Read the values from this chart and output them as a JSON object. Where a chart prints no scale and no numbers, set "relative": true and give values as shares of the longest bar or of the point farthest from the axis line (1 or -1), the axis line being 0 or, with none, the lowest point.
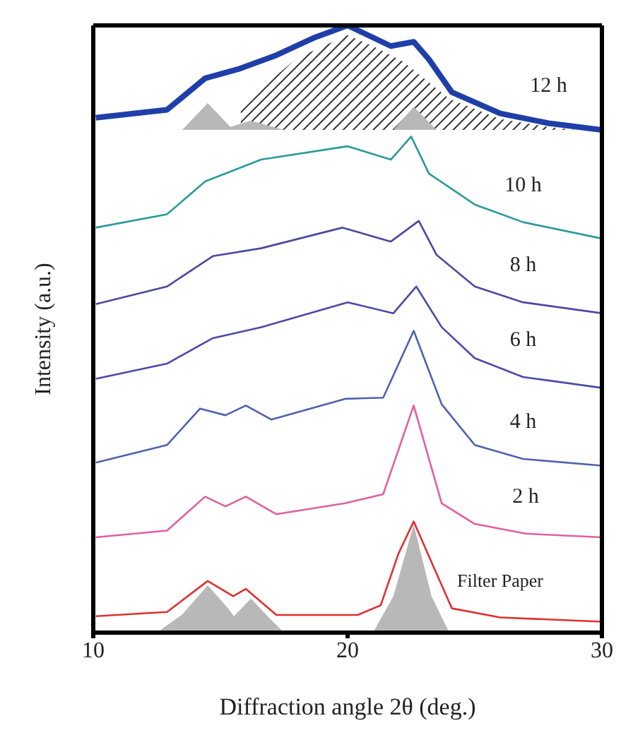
{
  "chart_data": {
    "type": "line",
    "relative": true,
    "xlabel": "Diffraction angle 2θ (deg.)",
    "ylabel": "Intensity (a.u.)",
    "xlim": [
      10,
      30
    ],
    "xticks": [
      10,
      20,
      30
    ],
    "marker": "none",
    "line_style": "solid",
    "series": [
      {
        "type": "area",
        "color": "#b8b8b8",
        "x": [
          12.5,
          13.5,
          14.5,
          15.3,
          16
        ],
        "values": [
          0,
          0.03,
          0.078,
          0.04,
          0
        ]
      },
      {
        "type": "area",
        "color": "#b8b8b8",
        "x": [
          15,
          15.6,
          16.2,
          16.9,
          17.5
        ],
        "values": [
          0,
          0.03,
          0.056,
          0.025,
          0
        ]
      },
      {
        "type": "area",
        "color": "#b8b8b8",
        "x": [
          21,
          21.8,
          22.6,
          23.3,
          24
        ],
        "values": [
          0,
          0.06,
          0.178,
          0.06,
          0
        ]
      },
      {
        "type": "area",
        "color": "#333333",
        "x": [
          15.8,
          18,
          20,
          21,
          22.2,
          24,
          26,
          28,
          29
        ],
        "values": [
          0.868,
          0.946,
          0.984,
          0.966,
          0.94,
          0.879,
          0.846,
          0.832,
          0.828
        ]
      },
      {
        "type": "area",
        "color": "#b8b8b8",
        "x": [
          13.5,
          14.5,
          15.5
        ],
        "values": [
          0.828,
          0.872,
          0.828
        ]
      },
      {
        "type": "area",
        "color": "#b8b8b8",
        "x": [
          15,
          16.2,
          17.5
        ],
        "values": [
          0.828,
          0.843,
          0.828
        ]
      },
      {
        "type": "area",
        "color": "#b8b8b8",
        "x": [
          21.8,
          22.6,
          23.5
        ],
        "values": [
          0.828,
          0.866,
          0.828
        ]
      },
      {
        "name": "12 h",
        "color": "#1f3fa8",
        "x": [
          10.1,
          12.9,
          14.4,
          15.7,
          17.2,
          18.7,
          20,
          21.7,
          22.6,
          23.2,
          24.1,
          26,
          27.9,
          30
        ],
        "values": [
          0.848,
          0.861,
          0.913,
          0.928,
          0.951,
          0.98,
          1,
          0.966,
          0.973,
          0.944,
          0.89,
          0.855,
          0.839,
          0.828
        ]
      },
      {
        "name": "10 h",
        "color": "#2a9a9a",
        "x": [
          10.1,
          12.9,
          14.4,
          16.6,
          20,
          21.7,
          22.5,
          23.2,
          25,
          26.9,
          30
        ],
        "values": [
          0.667,
          0.689,
          0.743,
          0.779,
          0.801,
          0.779,
          0.817,
          0.756,
          0.705,
          0.676,
          0.649
        ]
      },
      {
        "name": "8 h",
        "color": "#4a4aa0",
        "x": [
          10.1,
          12.9,
          14.7,
          16.6,
          19.8,
          21.7,
          22.8,
          23.5,
          25,
          26.9,
          30
        ],
        "values": [
          0.541,
          0.57,
          0.62,
          0.633,
          0.667,
          0.644,
          0.678,
          0.622,
          0.57,
          0.544,
          0.526
        ]
      },
      {
        "name": "6 h",
        "color": "#4a4aa8",
        "x": [
          10.1,
          12.9,
          14.7,
          16.6,
          20,
          21.8,
          22.7,
          23.7,
          25,
          26.9,
          30
        ],
        "values": [
          0.418,
          0.443,
          0.485,
          0.503,
          0.544,
          0.526,
          0.57,
          0.503,
          0.452,
          0.421,
          0.403
        ]
      },
      {
        "name": "4 h",
        "color": "#5060b0",
        "x": [
          10.1,
          12.9,
          14.2,
          15.2,
          16,
          17,
          19.9,
          21.4,
          22.6,
          23.7,
          25,
          26.9,
          30
        ],
        "values": [
          0.28,
          0.309,
          0.369,
          0.358,
          0.374,
          0.351,
          0.385,
          0.387,
          0.497,
          0.376,
          0.309,
          0.286,
          0.275
        ]
      },
      {
        "name": "2 h",
        "color": "#e060a0",
        "x": [
          10.1,
          12.9,
          14.4,
          15.2,
          16,
          17.2,
          19.9,
          21.4,
          22.6,
          23.7,
          25,
          27,
          30
        ],
        "values": [
          0.157,
          0.168,
          0.224,
          0.208,
          0.224,
          0.195,
          0.213,
          0.228,
          0.374,
          0.213,
          0.179,
          0.163,
          0.157
        ]
      },
      {
        "name": "Filter Paper",
        "color": "#e03030",
        "x": [
          10.1,
          12.9,
          14.5,
          15.5,
          16,
          17.2,
          20.4,
          21.3,
          22,
          22.6,
          23.3,
          24.1,
          26,
          30
        ],
        "values": [
          0.027,
          0.034,
          0.085,
          0.06,
          0.072,
          0.029,
          0.029,
          0.045,
          0.13,
          0.183,
          0.116,
          0.04,
          0.025,
          0.018
        ]
      }
    ]
  }
}
